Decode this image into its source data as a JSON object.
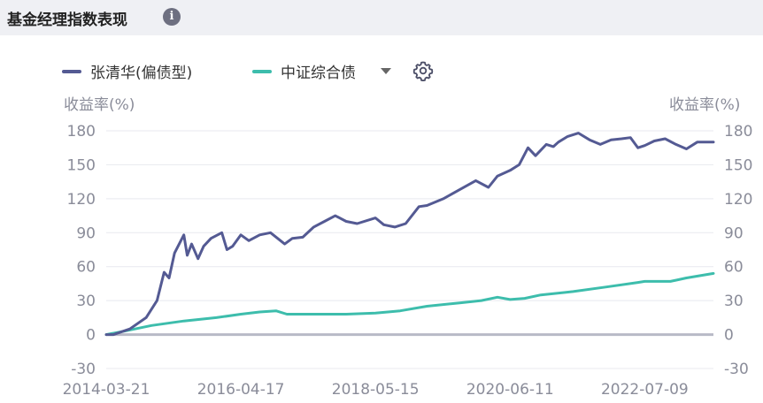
{
  "header": {
    "title": "基金经理指数表现",
    "info_icon": "info-icon"
  },
  "legend": {
    "series1_label": "张清华(偏债型)",
    "series2_label": "中证综合债",
    "dropdown_icon": "caret-down-icon",
    "settings_icon": "gear-icon"
  },
  "colors": {
    "series1": "#545a93",
    "series2": "#3dbdac",
    "axis": "#b8bac6",
    "grid": "#e8e9ef"
  },
  "chart_data": {
    "type": "line",
    "y_left_label": "收益率(%)",
    "y_right_label": "收益率(%)",
    "ylim": [
      -30,
      180
    ],
    "yticks": [
      -30,
      0,
      30,
      60,
      90,
      120,
      150,
      180
    ],
    "xlim": [
      "2014-03-21",
      "2023-07-31"
    ],
    "xticks": [
      "2014-03-21",
      "2016-04-17",
      "2018-05-15",
      "2020-06-11",
      "2022-07-09"
    ],
    "series": [
      {
        "name": "张清华(偏债型)",
        "x": [
          "2014-03-21",
          "2014-05-01",
          "2014-08-01",
          "2014-11-01",
          "2015-01-01",
          "2015-02-10",
          "2015-03-10",
          "2015-04-10",
          "2015-06-01",
          "2015-06-20",
          "2015-07-15",
          "2015-08-20",
          "2015-09-20",
          "2015-11-01",
          "2016-01-01",
          "2016-01-30",
          "2016-03-01",
          "2016-04-17",
          "2016-06-01",
          "2016-08-01",
          "2016-10-01",
          "2016-12-20",
          "2017-02-01",
          "2017-04-01",
          "2017-06-01",
          "2017-08-01",
          "2017-10-01",
          "2017-12-01",
          "2018-02-01",
          "2018-05-15",
          "2018-07-01",
          "2018-09-01",
          "2018-11-01",
          "2019-01-15",
          "2019-03-01",
          "2019-06-01",
          "2019-09-01",
          "2019-12-01",
          "2020-02-10",
          "2020-04-01",
          "2020-06-11",
          "2020-08-01",
          "2020-09-20",
          "2020-11-01",
          "2021-01-01",
          "2021-02-10",
          "2021-03-10",
          "2021-05-01",
          "2021-07-01",
          "2021-09-01",
          "2021-11-01",
          "2022-01-01",
          "2022-03-01",
          "2022-04-20",
          "2022-06-01",
          "2022-07-09",
          "2022-09-01",
          "2022-11-01",
          "2023-01-01",
          "2023-03-01",
          "2023-05-01",
          "2023-07-31"
        ],
        "values": [
          0,
          0,
          5,
          15,
          30,
          55,
          50,
          72,
          88,
          70,
          80,
          67,
          78,
          85,
          90,
          75,
          78,
          88,
          83,
          88,
          90,
          80,
          85,
          86,
          95,
          100,
          105,
          100,
          98,
          103,
          97,
          95,
          98,
          113,
          114,
          120,
          128,
          136,
          130,
          140,
          145,
          150,
          165,
          158,
          168,
          166,
          170,
          175,
          178,
          172,
          168,
          172,
          173,
          174,
          165,
          167,
          171,
          173,
          168,
          164,
          170,
          170
        ]
      },
      {
        "name": "中证综合债",
        "x": [
          "2014-03-21",
          "2014-07-01",
          "2014-12-01",
          "2015-06-01",
          "2015-12-01",
          "2016-04-17",
          "2016-08-01",
          "2016-11-01",
          "2017-01-01",
          "2017-06-01",
          "2017-12-01",
          "2018-05-15",
          "2018-10-01",
          "2019-03-01",
          "2019-09-01",
          "2020-01-01",
          "2020-04-01",
          "2020-06-11",
          "2020-09-01",
          "2020-12-01",
          "2021-06-01",
          "2021-12-01",
          "2022-06-01",
          "2022-07-09",
          "2022-12-01",
          "2023-03-01",
          "2023-07-31"
        ],
        "values": [
          0,
          3,
          8,
          12,
          15,
          18,
          20,
          21,
          18,
          18,
          18,
          19,
          21,
          25,
          28,
          30,
          33,
          31,
          32,
          35,
          38,
          42,
          46,
          47,
          47,
          50,
          54
        ]
      }
    ]
  }
}
